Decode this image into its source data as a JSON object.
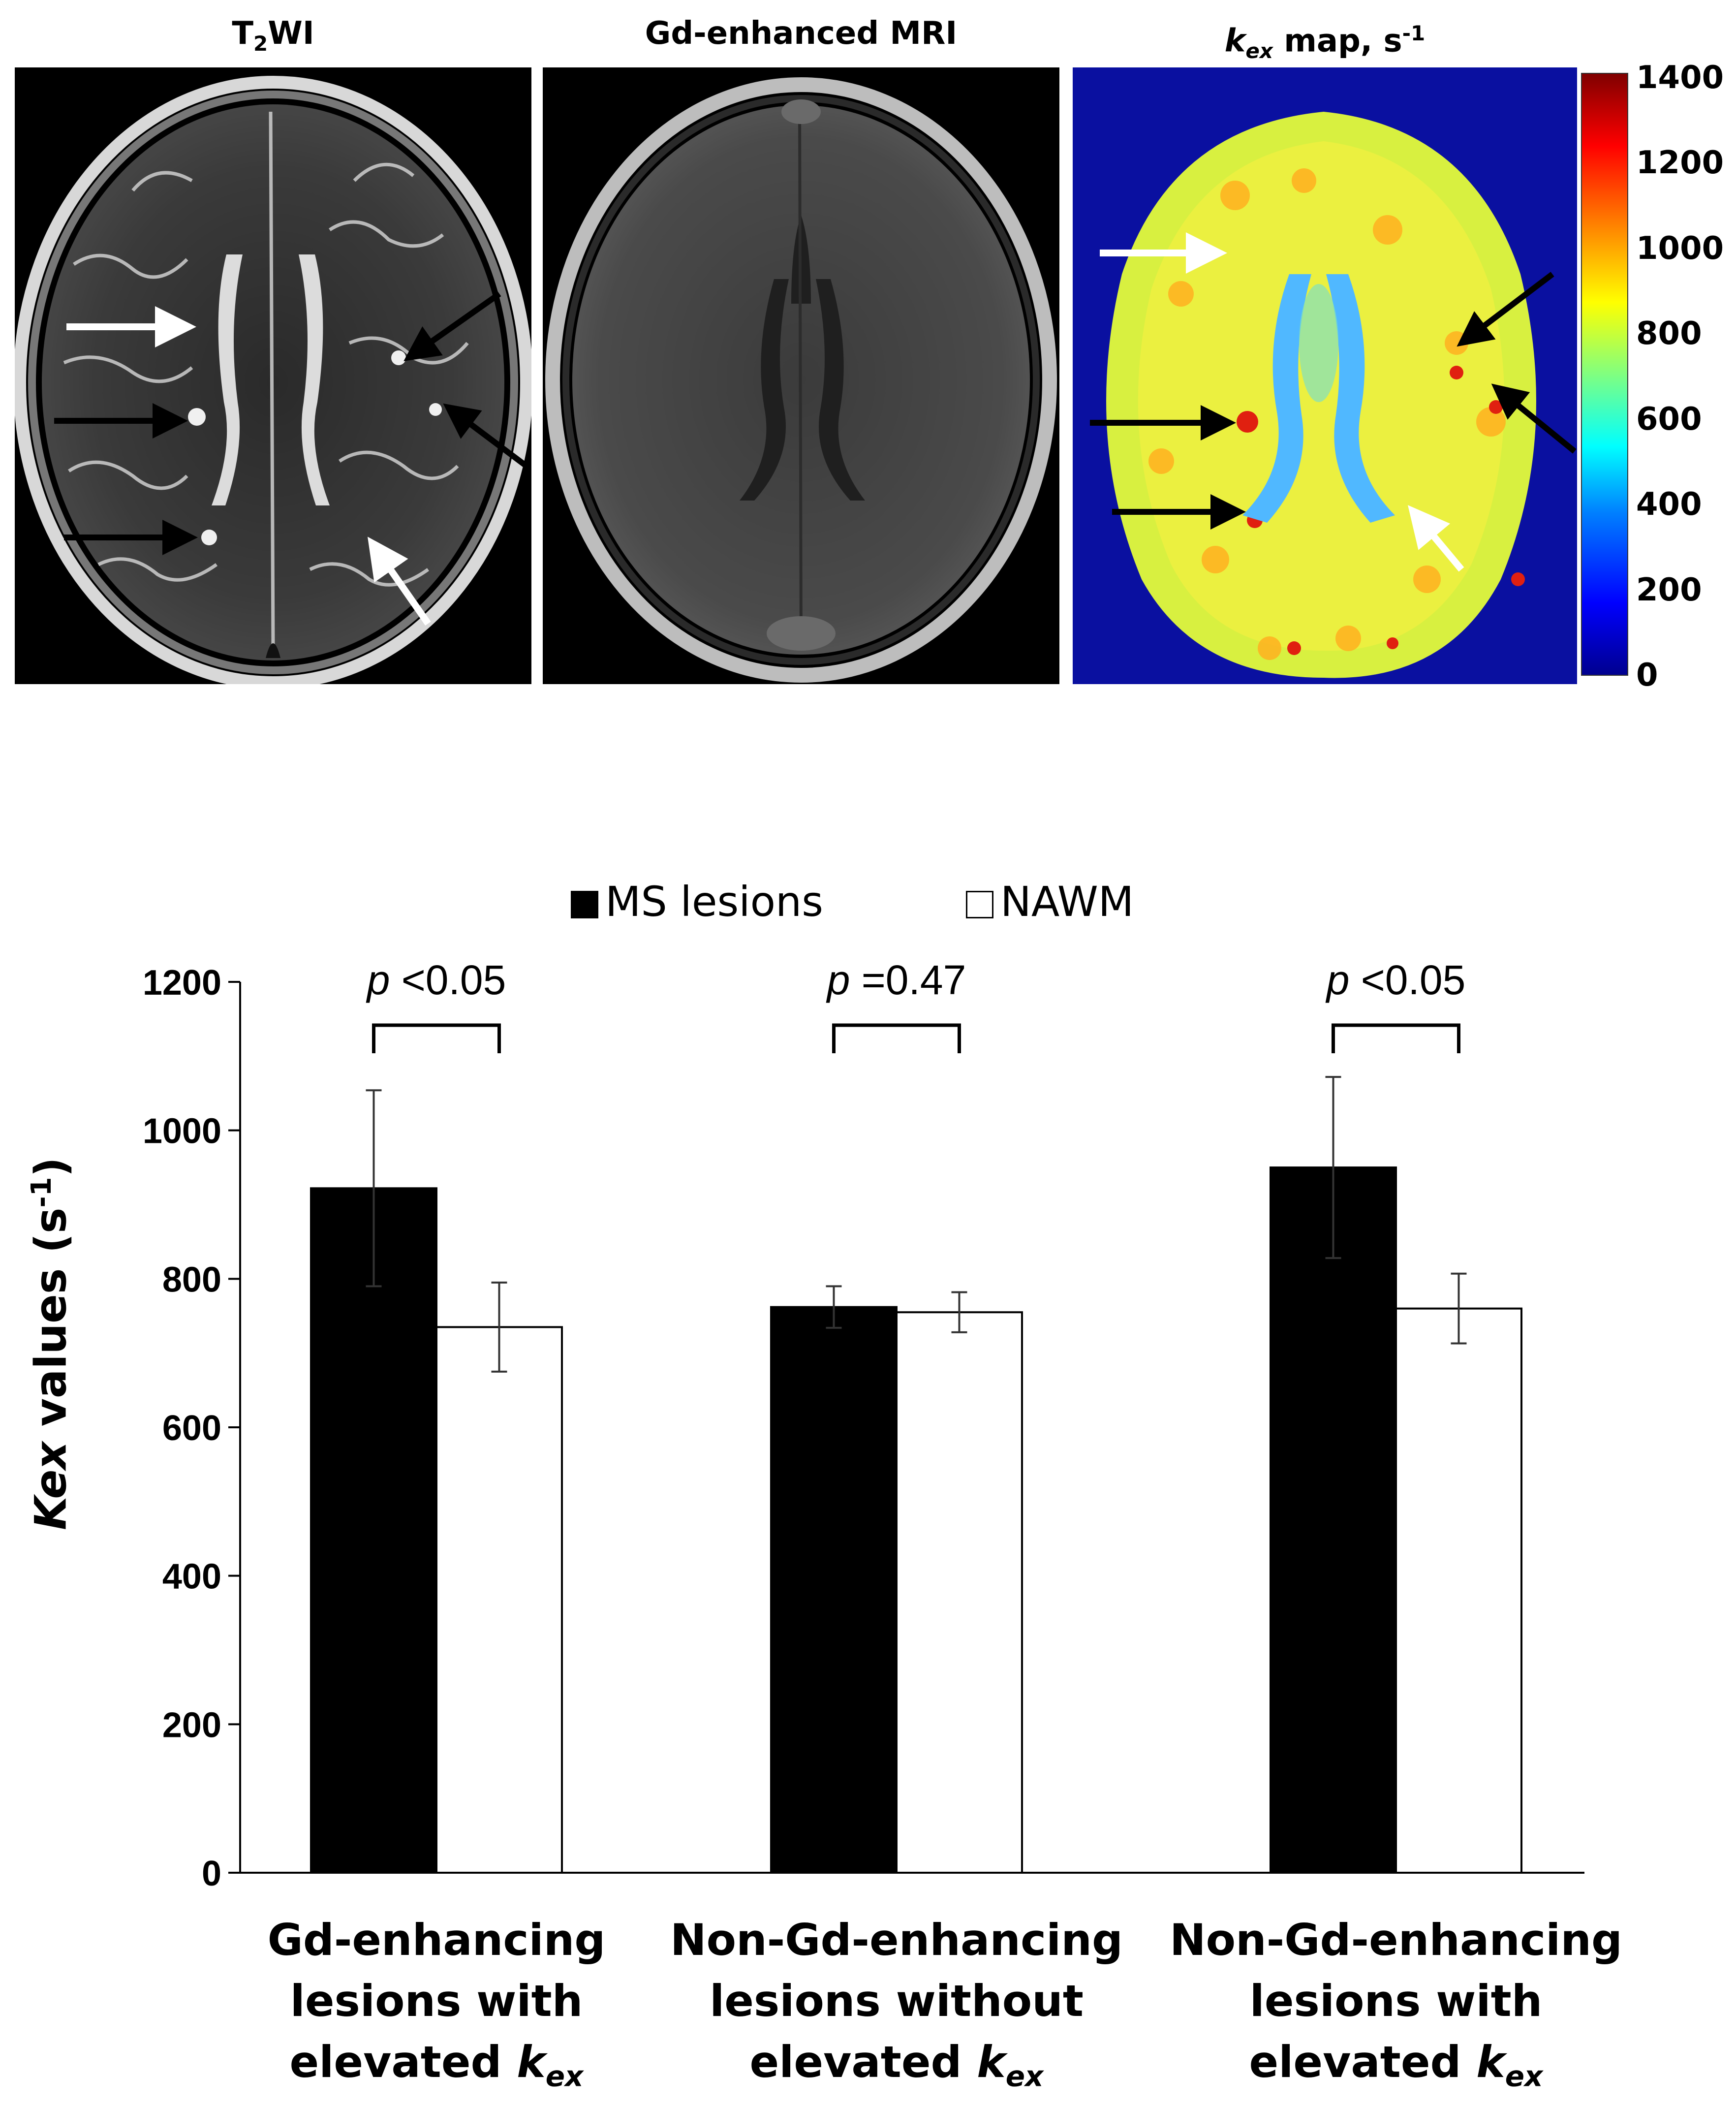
{
  "panels": {
    "t2": {
      "title": "T",
      "title_sub": "2",
      "title_rest": "WI"
    },
    "gd": {
      "title": "Gd-enhanced MRI"
    },
    "kex": {
      "title_k": "k",
      "title_sub": "ex",
      "title_rest": " map, s",
      "title_sup": "-1"
    }
  },
  "colorbar": {
    "ticks": [
      "1400",
      "1200",
      "1000",
      "800",
      "600",
      "400",
      "200",
      "0"
    ],
    "min": 0,
    "max": 1400
  },
  "colors": {
    "ms_lesions": "#000000",
    "nawm": "#ffffff",
    "kex_background": "#0a10a0"
  },
  "chart_data": {
    "type": "bar",
    "categories": [
      "Gd-enhancing lesions with elevated kex",
      "Non-Gd-enhancing lesions without elevated kex",
      "Non-Gd-enhancing lesions with elevated kex"
    ],
    "category_lines": [
      [
        "Gd-enhancing",
        "lesions with",
        "elevated "
      ],
      [
        "Non-Gd-enhancing",
        "lesions without",
        "elevated "
      ],
      [
        "Non-Gd-enhancing",
        "lesions with",
        "elevated "
      ]
    ],
    "category_k": "k",
    "category_sub": "ex",
    "series": [
      {
        "name": "MS lesions",
        "values": [
          922,
          762,
          950
        ],
        "errors": [
          132,
          28,
          122
        ]
      },
      {
        "name": "NAWM",
        "values": [
          735,
          755,
          760
        ],
        "errors": [
          60,
          27,
          47
        ]
      }
    ],
    "p_labels": [
      {
        "p": "p",
        "rest": " <0.05"
      },
      {
        "p": "p",
        "rest": " =0.47"
      },
      {
        "p": "p",
        "rest": " <0.05"
      }
    ],
    "ylabel_italic": "Kex",
    "ylabel_rest": " values (s",
    "ylabel_sup": "-1",
    "ylabel_close": ")",
    "ylim": [
      0,
      1200
    ],
    "yticks": [
      0,
      200,
      400,
      600,
      800,
      1000,
      1200
    ],
    "legend_position": "top-center",
    "grid": false
  }
}
